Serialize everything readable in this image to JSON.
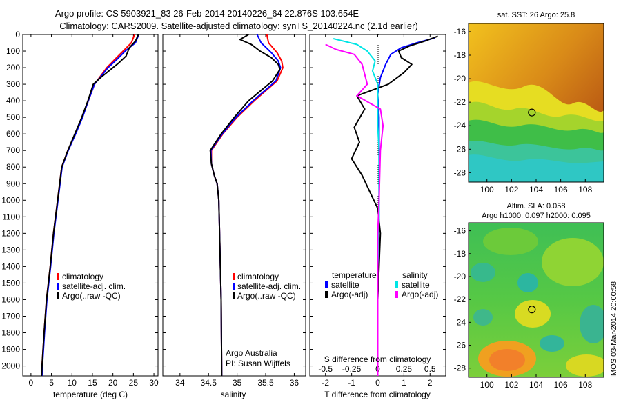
{
  "header": {
    "line1": "Argo profile: CS 5903921_83 26-Feb-2014 20140226_64 22.876S 103.654E",
    "line2": "Climatology: CARS2009. Satellite-adjusted climatology: synTS_20140224.nc (2.1d earlier)"
  },
  "side_label": "IMOS 03-Mar-2014 20:00:58",
  "colors": {
    "clim": "#ff0000",
    "sat": "#0000ff",
    "argo": "#000000",
    "sat_s": "#00e5e5",
    "argo_s": "#ff00ff"
  },
  "chart_data": [
    {
      "type": "line",
      "title": "",
      "xlabel": "temperature (deg C)",
      "ylabel": "",
      "xlim": [
        -2,
        31
      ],
      "ylim": [
        2060,
        0
      ],
      "xticks": [
        0,
        5,
        10,
        15,
        20,
        25,
        30
      ],
      "yticks": [
        0,
        100,
        200,
        300,
        400,
        500,
        600,
        700,
        800,
        900,
        1000,
        1100,
        1200,
        1300,
        1400,
        1500,
        1600,
        1700,
        1800,
        1900,
        2000
      ],
      "legend": [
        "climatology",
        "satellite-adj. clim.",
        "Argo(..raw -QC)"
      ],
      "series": [
        {
          "name": "climatology",
          "color_key": "clim",
          "points": [
            [
              25.3,
              0
            ],
            [
              24.5,
              50
            ],
            [
              22.5,
              100
            ],
            [
              20.5,
              150
            ],
            [
              18.5,
              200
            ],
            [
              15.5,
              300
            ],
            [
              14,
              400
            ],
            [
              12.5,
              500
            ],
            [
              10.8,
              600
            ],
            [
              9,
              700
            ],
            [
              7.5,
              800
            ],
            [
              6.5,
              1000
            ],
            [
              5.5,
              1200
            ],
            [
              4.7,
              1400
            ],
            [
              3.8,
              1600
            ],
            [
              3.2,
              1800
            ],
            [
              2.7,
              2000
            ],
            [
              2.6,
              2060
            ]
          ]
        },
        {
          "name": "satellite-adj. clim.",
          "color_key": "sat",
          "points": [
            [
              26.3,
              0
            ],
            [
              25.5,
              50
            ],
            [
              23,
              100
            ],
            [
              21,
              150
            ],
            [
              18.8,
              200
            ],
            [
              15.5,
              300
            ],
            [
              14,
              400
            ],
            [
              12.6,
              500
            ],
            [
              10.9,
              600
            ],
            [
              9.1,
              700
            ],
            [
              7.6,
              800
            ],
            [
              6.6,
              1000
            ],
            [
              5.6,
              1200
            ],
            [
              4.8,
              1400
            ],
            [
              3.9,
              1600
            ],
            [
              3.3,
              1800
            ],
            [
              2.8,
              2000
            ],
            [
              2.7,
              2060
            ]
          ]
        },
        {
          "name": "Argo(..raw -QC)",
          "color_key": "argo",
          "points": [
            [
              26.2,
              0
            ],
            [
              25.5,
              40
            ],
            [
              24,
              80
            ],
            [
              23.2,
              130
            ],
            [
              21.5,
              170
            ],
            [
              19.5,
              210
            ],
            [
              17,
              260
            ],
            [
              15.2,
              300
            ],
            [
              13.9,
              400
            ],
            [
              12.4,
              500
            ],
            [
              10.7,
              600
            ],
            [
              9,
              700
            ],
            [
              7.5,
              800
            ],
            [
              6.5,
              1000
            ],
            [
              5.5,
              1200
            ],
            [
              4.7,
              1400
            ],
            [
              3.8,
              1600
            ],
            [
              3.2,
              1800
            ],
            [
              2.7,
              2000
            ],
            [
              2.6,
              2060
            ]
          ]
        }
      ]
    },
    {
      "type": "line",
      "title": "",
      "xlabel": "salinity",
      "ylabel": "",
      "xlim": [
        33.7,
        36.2
      ],
      "ylim": [
        2060,
        0
      ],
      "xticks": [
        34,
        34.5,
        35,
        35.5,
        36
      ],
      "legend": [
        "climatology",
        "satellite-adj. clim.",
        "Argo(..raw -QC)"
      ],
      "annotation": [
        "Argo Australia",
        "PI: Susan Wijffels"
      ],
      "series": [
        {
          "name": "climatology",
          "color_key": "clim",
          "points": [
            [
              35.52,
              0
            ],
            [
              35.55,
              50
            ],
            [
              35.7,
              110
            ],
            [
              35.78,
              160
            ],
            [
              35.8,
              200
            ],
            [
              35.7,
              280
            ],
            [
              35.3,
              400
            ],
            [
              35.0,
              500
            ],
            [
              34.75,
              600
            ],
            [
              34.55,
              700
            ],
            [
              34.55,
              780
            ],
            [
              34.6,
              850
            ],
            [
              34.65,
              900
            ],
            [
              34.68,
              1000
            ],
            [
              34.7,
              1300
            ],
            [
              34.72,
              1600
            ],
            [
              34.73,
              2060
            ]
          ]
        },
        {
          "name": "satellite-adj. clim.",
          "color_key": "sat",
          "points": [
            [
              35.35,
              0
            ],
            [
              35.42,
              50
            ],
            [
              35.6,
              110
            ],
            [
              35.72,
              160
            ],
            [
              35.76,
              200
            ],
            [
              35.68,
              280
            ],
            [
              35.28,
              400
            ],
            [
              34.98,
              500
            ],
            [
              34.74,
              600
            ],
            [
              34.54,
              700
            ],
            [
              34.55,
              780
            ],
            [
              34.6,
              850
            ],
            [
              34.65,
              900
            ],
            [
              34.68,
              1000
            ],
            [
              34.7,
              1300
            ],
            [
              34.72,
              1600
            ],
            [
              34.73,
              2060
            ]
          ]
        },
        {
          "name": "Argo(..raw -QC)",
          "color_key": "argo",
          "points": [
            [
              35.2,
              0
            ],
            [
              35.05,
              30
            ],
            [
              35.25,
              60
            ],
            [
              35.4,
              100
            ],
            [
              35.6,
              140
            ],
            [
              35.72,
              180
            ],
            [
              35.75,
              210
            ],
            [
              35.62,
              280
            ],
            [
              35.2,
              400
            ],
            [
              34.95,
              500
            ],
            [
              34.72,
              600
            ],
            [
              34.53,
              700
            ],
            [
              34.55,
              780
            ],
            [
              34.6,
              850
            ],
            [
              34.65,
              900
            ],
            [
              34.68,
              1000
            ],
            [
              34.7,
              1300
            ],
            [
              34.72,
              1600
            ],
            [
              34.73,
              2060
            ]
          ]
        }
      ]
    },
    {
      "type": "line",
      "title": "",
      "xlabel": "T difference from climatology",
      "x2label": "S difference from climatology",
      "xlim": [
        -2.6,
        2.6
      ],
      "ylim": [
        2060,
        0
      ],
      "xticks": [
        -2,
        -1,
        0,
        1,
        2
      ],
      "x2ticks": [
        "-0.5",
        "-0.25",
        "0",
        "0.25",
        "0.5"
      ],
      "legend_title_t": "temperature",
      "legend_title_s": "salinity",
      "legend": [
        "satellite",
        "Argo(-adj)",
        "satellite",
        "Argo(-adj)"
      ],
      "series": [
        {
          "name": "T satellite",
          "color_key": "sat",
          "points": [
            [
              2.2,
              20
            ],
            [
              1.5,
              50
            ],
            [
              0.9,
              80
            ],
            [
              0.5,
              120
            ],
            [
              0.3,
              180
            ],
            [
              0.1,
              260
            ],
            [
              0.0,
              360
            ],
            [
              0.05,
              500
            ],
            [
              0.05,
              800
            ],
            [
              0.05,
              1100
            ],
            [
              0.0,
              1500
            ],
            [
              0.0,
              2060
            ]
          ]
        },
        {
          "name": "T Argo(-adj)",
          "color_key": "argo",
          "points": [
            [
              2.3,
              10
            ],
            [
              1.8,
              40
            ],
            [
              1.2,
              70
            ],
            [
              0.8,
              100
            ],
            [
              0.9,
              140
            ],
            [
              1.3,
              180
            ],
            [
              1.0,
              230
            ],
            [
              0.4,
              300
            ],
            [
              -0.8,
              370
            ],
            [
              -0.5,
              450
            ],
            [
              -0.9,
              560
            ],
            [
              -0.7,
              650
            ],
            [
              -1.0,
              750
            ],
            [
              -0.6,
              850
            ],
            [
              -0.3,
              950
            ],
            [
              0.0,
              1050
            ],
            [
              0.1,
              1200
            ],
            [
              0.05,
              1400
            ],
            [
              0.0,
              1600
            ],
            [
              0.0,
              2060
            ]
          ]
        },
        {
          "name": "S satellite",
          "color_key": "sat_s",
          "points": [
            [
              -1.7,
              25
            ],
            [
              -0.8,
              60
            ],
            [
              -0.4,
              100
            ],
            [
              -0.1,
              160
            ],
            [
              -0.2,
              220
            ],
            [
              0.0,
              300
            ],
            [
              0.0,
              400
            ],
            [
              0.0,
              550
            ],
            [
              0.05,
              700
            ],
            [
              0.05,
              900
            ],
            [
              0.05,
              1100
            ],
            [
              0.0,
              1400
            ],
            [
              0.0,
              2060
            ]
          ]
        },
        {
          "name": "S Argo(-adj)",
          "color_key": "argo_s",
          "points": [
            [
              -2.0,
              60
            ],
            [
              -1.6,
              90
            ],
            [
              -0.9,
              120
            ],
            [
              -0.6,
              180
            ],
            [
              -0.4,
              300
            ],
            [
              -0.8,
              370
            ],
            [
              0.1,
              450
            ],
            [
              0.2,
              550
            ],
            [
              0.1,
              700
            ],
            [
              0.05,
              1000
            ],
            [
              0.0,
              1200
            ],
            [
              0.0,
              1500
            ],
            [
              0.0,
              2060
            ]
          ]
        }
      ]
    },
    {
      "type": "heatmap",
      "title": "sat. SST: 26 Argo: 25.8",
      "xlabel": "",
      "ylabel": "",
      "xlim": [
        98.5,
        109.5
      ],
      "ylim": [
        -28.8,
        -15.3
      ],
      "xticks": [
        100,
        102,
        104,
        106,
        108
      ],
      "yticks": [
        -16,
        -18,
        -20,
        -22,
        -24,
        -26,
        -28
      ],
      "marker": [
        103.654,
        -22.876
      ]
    },
    {
      "type": "heatmap",
      "title": "Altim. SLA: 0.058",
      "subtitle": "Argo h1000: 0.097 h2000: 0.095",
      "xlabel": "",
      "ylabel": "",
      "xlim": [
        98.5,
        109.5
      ],
      "ylim": [
        -28.8,
        -15.3
      ],
      "xticks": [
        100,
        102,
        104,
        106,
        108
      ],
      "yticks": [
        -16,
        -18,
        -20,
        -22,
        -24,
        -26,
        -28
      ],
      "marker": [
        103.654,
        -22.876
      ]
    }
  ]
}
